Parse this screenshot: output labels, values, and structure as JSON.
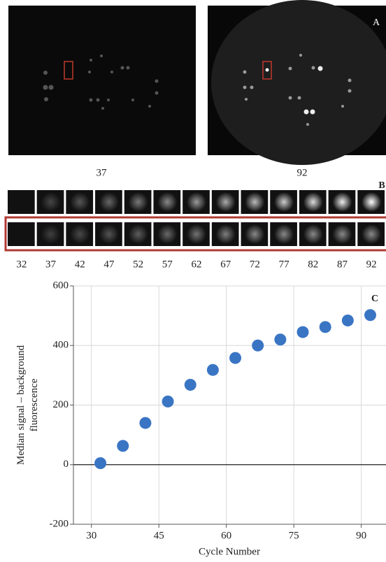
{
  "panels": {
    "a": {
      "label": "A",
      "captions": [
        "37",
        "92"
      ]
    },
    "b": {
      "label": "B",
      "cycles": [
        32,
        37,
        42,
        47,
        52,
        57,
        62,
        67,
        72,
        77,
        82,
        87,
        92
      ]
    },
    "c": {
      "label": "C"
    }
  },
  "chart_data": {
    "type": "scatter",
    "x": [
      32,
      37,
      42,
      47,
      52,
      57,
      62,
      67,
      72,
      77,
      82,
      87,
      92
    ],
    "values": [
      5,
      63,
      140,
      212,
      268,
      318,
      358,
      400,
      420,
      445,
      462,
      484,
      502
    ],
    "color": "#3a75c4",
    "xlabel": "Cycle Number",
    "ylabel": [
      "Median signal – background",
      "fluorescence"
    ],
    "xlim": [
      26,
      95.5
    ],
    "xticks": [
      30,
      45,
      60,
      75,
      90
    ],
    "ylim": [
      -200,
      600
    ],
    "yticks": [
      -200,
      0,
      200,
      400,
      600
    ],
    "grid": true
  }
}
